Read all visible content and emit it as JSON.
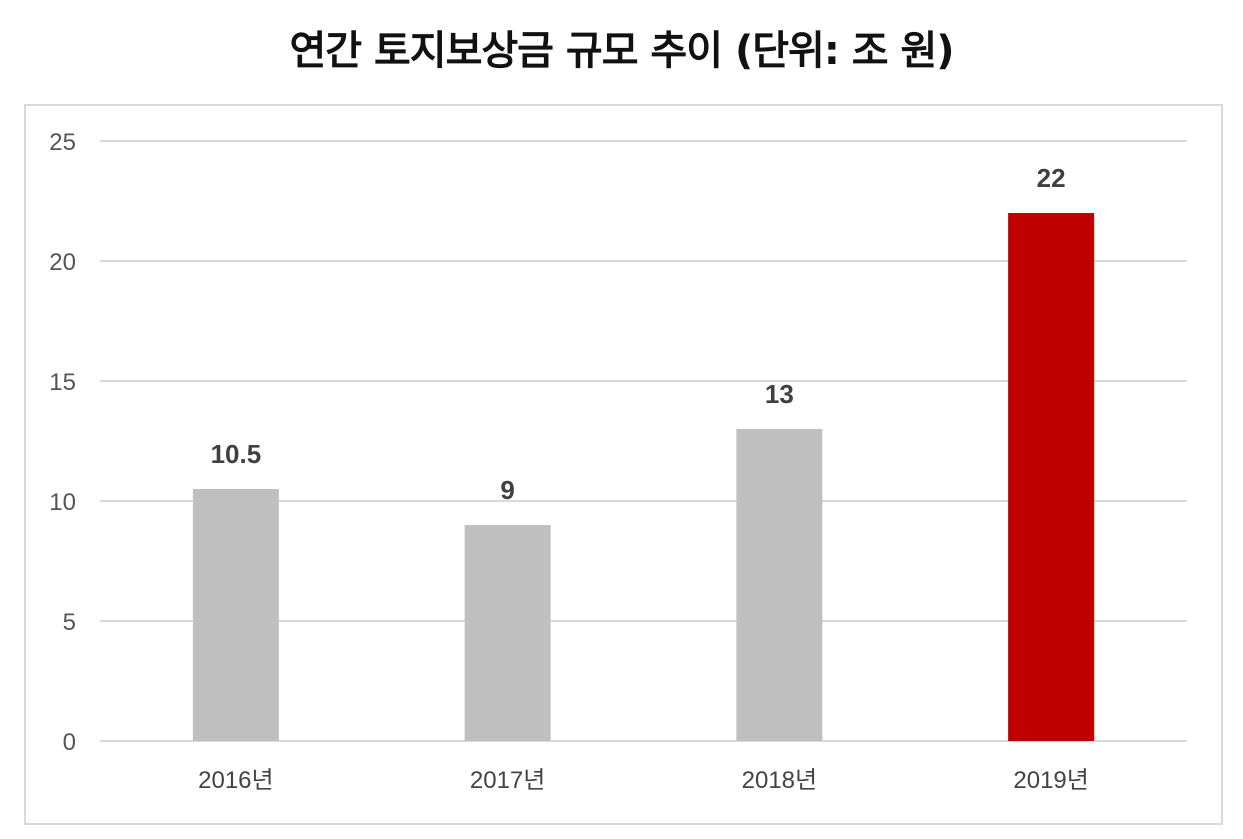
{
  "title": "연간 토지보상금 규모 추이 (단위: 조 원)",
  "chart_data": {
    "type": "bar",
    "categories": [
      "2016년",
      "2017년",
      "2018년",
      "2019년"
    ],
    "values": [
      10.5,
      9,
      13,
      22
    ],
    "data_labels": [
      "10.5",
      "9",
      "13",
      "22"
    ],
    "bar_colors": [
      "#bfbfbf",
      "#bfbfbf",
      "#bfbfbf",
      "#c00000"
    ],
    "ylim": [
      0,
      25
    ],
    "yticks": [
      0,
      5,
      10,
      15,
      20,
      25
    ],
    "grid": true,
    "gridline_color": "#d9d9d9",
    "xlabel": "",
    "ylabel": ""
  }
}
